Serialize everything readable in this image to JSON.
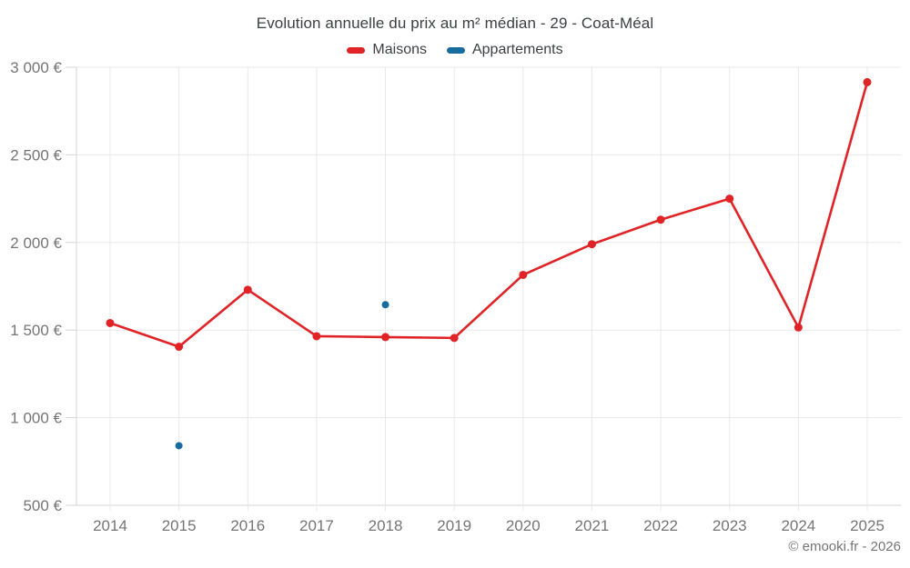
{
  "title": "Evolution annuelle du prix au m² médian - 29 - Coat-Méal",
  "legend": {
    "items": [
      {
        "label": "Maisons",
        "color": "#e02326"
      },
      {
        "label": "Appartements",
        "color": "#176c9e"
      }
    ]
  },
  "copyright": "© emooki.fr - 2026",
  "colors": {
    "maisons": "#e02326",
    "appartements": "#176c9e",
    "gridline": "#e8e8e8",
    "axis_line": "#d6d6d6",
    "tick_text": "#757575",
    "title_text": "#3c4043",
    "background": "#ffffff"
  },
  "chart_data": {
    "type": "line",
    "title": "Evolution annuelle du prix au m² médian - 29 - Coat-Méal",
    "x": [
      2014,
      2015,
      2016,
      2017,
      2018,
      2019,
      2020,
      2021,
      2022,
      2023,
      2024,
      2025
    ],
    "xticklabels": [
      "2014",
      "2015",
      "2016",
      "2017",
      "2018",
      "2019",
      "2020",
      "2021",
      "2022",
      "2023",
      "2024",
      "2025"
    ],
    "series": [
      {
        "name": "Maisons",
        "color": "#e02326",
        "style": "line-with-markers",
        "values": [
          1540,
          1405,
          1730,
          1465,
          1460,
          1455,
          1815,
          1990,
          2130,
          2250,
          1515,
          2915
        ]
      },
      {
        "name": "Appartements",
        "color": "#176c9e",
        "style": "markers-only",
        "values": [
          null,
          840,
          null,
          null,
          1645,
          null,
          null,
          null,
          null,
          null,
          null,
          null
        ]
      }
    ],
    "ylim": [
      500,
      3000
    ],
    "yticks": [
      500,
      1000,
      1500,
      2000,
      2500,
      3000
    ],
    "yticklabels": [
      "500 €",
      "1 000 €",
      "1 500 €",
      "2 000 €",
      "2 500 €",
      "3 000 €"
    ],
    "xlabel": "",
    "ylabel": "",
    "grid": true,
    "legend_position": "top",
    "unit": "€"
  }
}
